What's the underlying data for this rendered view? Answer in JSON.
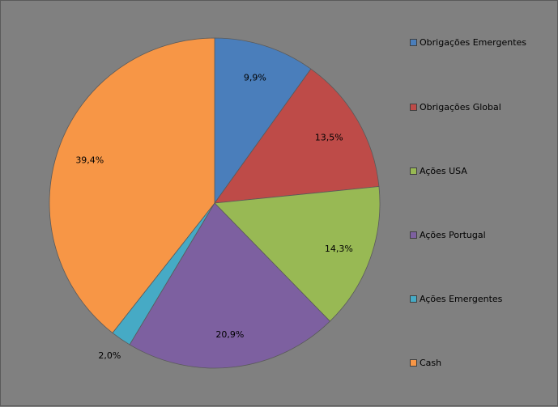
{
  "chart_data": {
    "type": "pie",
    "categories": [
      "Obrigações Emergentes",
      "Obrigações Global",
      "Ações USA",
      "Ações Portugal",
      "Ações Emergentes",
      "Cash"
    ],
    "values": [
      9.9,
      13.5,
      14.3,
      20.9,
      2.0,
      39.4
    ],
    "value_labels": [
      "9,9%",
      "13,5%",
      "14,3%",
      "20,9%",
      "2,0%",
      "39,4%"
    ],
    "colors": [
      "#4A7EBB",
      "#BE4B48",
      "#98B954",
      "#7D60A0",
      "#46AAC5",
      "#F79646"
    ],
    "legend_position": "right",
    "start_angle_deg": 0,
    "direction": "clockwise"
  }
}
